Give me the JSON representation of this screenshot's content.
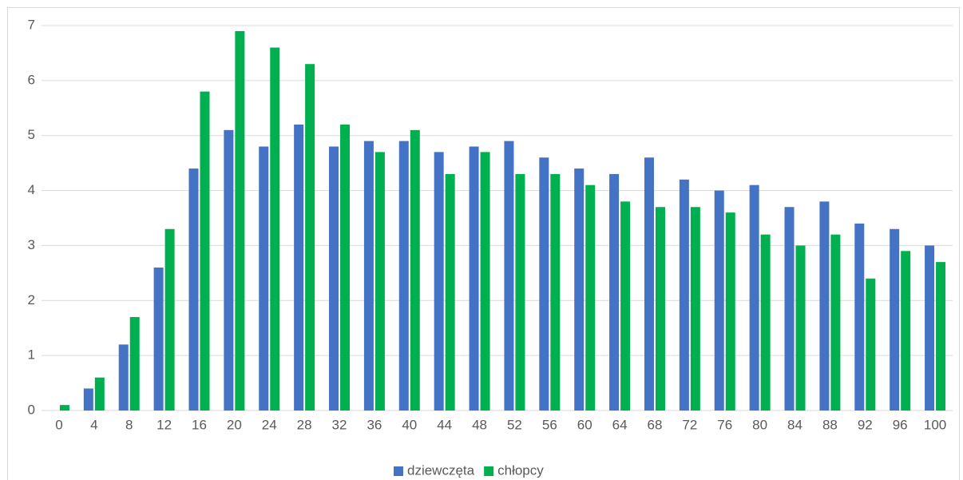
{
  "chart_data": {
    "type": "bar",
    "categories": [
      "0",
      "4",
      "8",
      "12",
      "16",
      "20",
      "24",
      "28",
      "32",
      "36",
      "40",
      "44",
      "48",
      "52",
      "56",
      "60",
      "64",
      "68",
      "72",
      "76",
      "80",
      "84",
      "88",
      "92",
      "96",
      "100"
    ],
    "series": [
      {
        "name": "dziewczęta",
        "color": "#4472c4",
        "values": [
          0,
          0.4,
          1.2,
          2.6,
          4.4,
          5.1,
          4.8,
          5.2,
          4.8,
          4.9,
          4.9,
          4.7,
          4.8,
          4.9,
          4.6,
          4.4,
          4.3,
          4.6,
          4.2,
          4.0,
          4.1,
          3.7,
          3.8,
          3.4,
          3.3,
          3.0
        ]
      },
      {
        "name": "chłopcy",
        "color": "#00b050",
        "values": [
          0.1,
          0.6,
          1.7,
          3.3,
          5.8,
          6.9,
          6.6,
          6.3,
          5.2,
          4.7,
          5.1,
          4.3,
          4.7,
          4.3,
          4.3,
          4.1,
          3.8,
          3.7,
          3.7,
          3.6,
          3.2,
          3.0,
          3.2,
          2.4,
          2.9,
          2.7
        ]
      }
    ],
    "ylim": [
      0,
      7
    ],
    "yticks": [
      0,
      1,
      2,
      3,
      4,
      5,
      6,
      7
    ],
    "grid": true,
    "legend": "bottom"
  }
}
